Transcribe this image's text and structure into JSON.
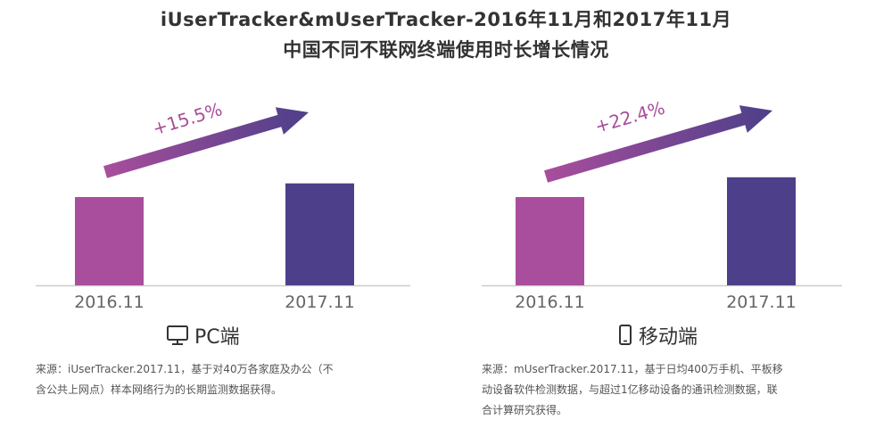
{
  "title_line1": "iUserTracker&mUserTracker-2016年11月和2017年11月",
  "title_line2": "中国不同不联网终端使用时长增长情况",
  "chart_data": [
    {
      "type": "bar",
      "panel": "PC端",
      "categories": [
        "2016.11",
        "2017.11"
      ],
      "values": [
        100,
        115.5
      ],
      "growth_label": "+15.5%",
      "bar_colors": [
        "#a94e9c",
        "#4d3f8a"
      ],
      "icon": "monitor-icon",
      "source_lines": [
        "来源：iUserTracker.2017.11，基于对40万各家庭及办公（不",
        "含公共上网点）样本网络行为的长期监测数据获得。"
      ]
    },
    {
      "type": "bar",
      "panel": "移动端",
      "categories": [
        "2016.11",
        "2017.11"
      ],
      "values": [
        100,
        122.4
      ],
      "growth_label": "+22.4%",
      "bar_colors": [
        "#a94e9c",
        "#4d3f8a"
      ],
      "icon": "phone-icon",
      "source_lines": [
        "来源：mUserTracker.2017.11，基于日均400万手机、平板移",
        "动设备软件检测数据，与超过1亿移动设备的通讯检测数据，联",
        "合计算研究获得。"
      ]
    }
  ]
}
